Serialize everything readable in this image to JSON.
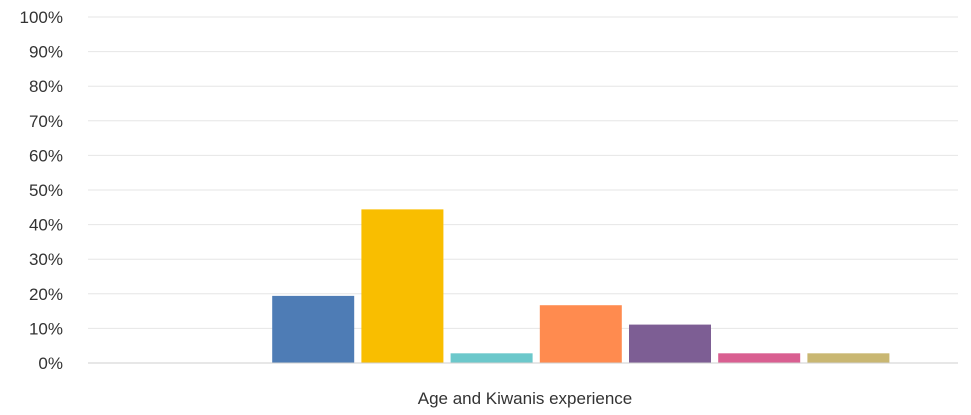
{
  "chart_data": {
    "type": "bar",
    "categories": [
      "Age and Kiwanis experience"
    ],
    "xlabel": "Age and Kiwanis experience",
    "ylabel": "",
    "ylim": [
      0,
      100
    ],
    "yticks": [
      "0%",
      "10%",
      "20%",
      "30%",
      "40%",
      "50%",
      "60%",
      "70%",
      "80%",
      "90%",
      "100%"
    ],
    "grid": true,
    "legend": "none",
    "series": [
      {
        "values": [
          0
        ],
        "color": "#4e7cb5"
      },
      {
        "values": [
          19.4
        ],
        "color": "#4e7cb5"
      },
      {
        "values": [
          44.4
        ],
        "color": "#f9be00"
      },
      {
        "values": [
          2.8
        ],
        "color": "#6cc8cb"
      },
      {
        "values": [
          16.7
        ],
        "color": "#ff8b4f"
      },
      {
        "values": [
          11.1
        ],
        "color": "#7d5e94"
      },
      {
        "values": [
          2.8
        ],
        "color": "#d95f91"
      },
      {
        "values": [
          2.8
        ],
        "color": "#c9b772"
      }
    ]
  }
}
